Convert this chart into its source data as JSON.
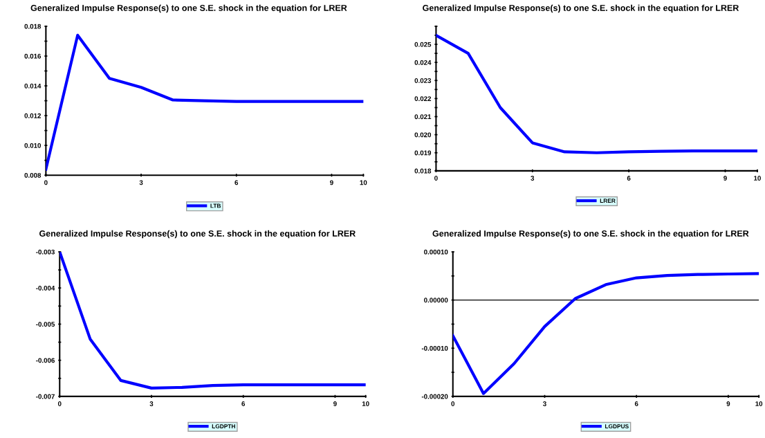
{
  "chart_data": [
    {
      "type": "line",
      "title": "Generalized Impulse Response(s) to one S.E. shock in the equation for LRER",
      "x": [
        0,
        1,
        2,
        3,
        4,
        5,
        6,
        7,
        8,
        9,
        10
      ],
      "xlim": [
        0,
        10
      ],
      "xticks": [
        0,
        3,
        6,
        9,
        10
      ],
      "ylim": [
        0.008,
        0.018
      ],
      "yticks": [
        {
          "value": 0.008,
          "label": "0.008"
        },
        {
          "value": 0.009,
          "label": null
        },
        {
          "value": 0.01,
          "label": "0.010"
        },
        {
          "value": 0.011,
          "label": null
        },
        {
          "value": 0.012,
          "label": "0.012"
        },
        {
          "value": 0.013,
          "label": null
        },
        {
          "value": 0.014,
          "label": "0.014"
        },
        {
          "value": 0.015,
          "label": null
        },
        {
          "value": 0.016,
          "label": "0.016"
        },
        {
          "value": 0.017,
          "label": null
        },
        {
          "value": 0.018,
          "label": "0.018"
        }
      ],
      "legend": "bottom",
      "grid": false,
      "series": [
        {
          "name": "LTB",
          "color": "#0000ff",
          "values": [
            0.0084,
            0.0174,
            0.0145,
            0.0139,
            0.01305,
            0.013,
            0.01295,
            0.01295,
            0.01295,
            0.01295,
            0.01295
          ]
        }
      ]
    },
    {
      "type": "line",
      "title": "Generalized Impulse Response(s) to one S.E. shock in the equation for LRER",
      "x": [
        0,
        1,
        2,
        3,
        4,
        5,
        6,
        7,
        8,
        9,
        10
      ],
      "xlim": [
        0,
        10
      ],
      "xticks": [
        0,
        3,
        6,
        9,
        10
      ],
      "ylim": [
        0.018,
        0.026
      ],
      "yticks": [
        {
          "value": 0.018,
          "label": "0.018"
        },
        {
          "value": 0.0185,
          "label": null
        },
        {
          "value": 0.019,
          "label": "0.019"
        },
        {
          "value": 0.0195,
          "label": null
        },
        {
          "value": 0.02,
          "label": "0.020"
        },
        {
          "value": 0.0205,
          "label": null
        },
        {
          "value": 0.021,
          "label": "0.021"
        },
        {
          "value": 0.0215,
          "label": null
        },
        {
          "value": 0.022,
          "label": "0.022"
        },
        {
          "value": 0.0225,
          "label": null
        },
        {
          "value": 0.023,
          "label": "0.023"
        },
        {
          "value": 0.0235,
          "label": null
        },
        {
          "value": 0.024,
          "label": "0.024"
        },
        {
          "value": 0.0245,
          "label": null
        },
        {
          "value": 0.025,
          "label": "0.025"
        },
        {
          "value": 0.0255,
          "label": null
        },
        {
          "value": 0.026,
          "label": null
        }
      ],
      "legend": "bottom",
      "grid": false,
      "series": [
        {
          "name": "LRER",
          "color": "#0000ff",
          "values": [
            0.0255,
            0.0245,
            0.0215,
            0.01955,
            0.01905,
            0.019,
            0.01905,
            0.01908,
            0.0191,
            0.0191,
            0.0191
          ]
        }
      ]
    },
    {
      "type": "line",
      "title": "Generalized Impulse Response(s) to one S.E. shock in the equation for LRER",
      "x": [
        0,
        1,
        2,
        3,
        4,
        5,
        6,
        7,
        8,
        9,
        10
      ],
      "xlim": [
        0,
        10
      ],
      "xticks": [
        0,
        3,
        6,
        9,
        10
      ],
      "ylim": [
        -0.007,
        -0.003
      ],
      "yticks": [
        {
          "value": -0.007,
          "label": "-0.007"
        },
        {
          "value": -0.0065,
          "label": null
        },
        {
          "value": -0.006,
          "label": "-0.006"
        },
        {
          "value": -0.0055,
          "label": null
        },
        {
          "value": -0.005,
          "label": "-0.005"
        },
        {
          "value": -0.0045,
          "label": null
        },
        {
          "value": -0.004,
          "label": "-0.004"
        },
        {
          "value": -0.0035,
          "label": null
        },
        {
          "value": -0.003,
          "label": "-0.003"
        }
      ],
      "legend": "bottom",
      "grid": false,
      "series": [
        {
          "name": "LGDPTH",
          "color": "#0000ff",
          "values": [
            -0.003,
            -0.00542,
            -0.00656,
            -0.00677,
            -0.00675,
            -0.0067,
            -0.00668,
            -0.00668,
            -0.00668,
            -0.00668,
            -0.00668
          ]
        }
      ]
    },
    {
      "type": "line",
      "title": "Generalized Impulse Response(s) to one S.E. shock in the equation for LRER",
      "x": [
        0,
        1,
        2,
        3,
        4,
        5,
        6,
        7,
        8,
        9,
        10
      ],
      "xlim": [
        0,
        10
      ],
      "xticks": [
        0,
        3,
        6,
        9,
        10
      ],
      "ylim": [
        -0.0002,
        0.0001
      ],
      "yticks": [
        {
          "value": -0.0002,
          "label": "-0.00020"
        },
        {
          "value": -0.00015,
          "label": null
        },
        {
          "value": -0.0001,
          "label": "-0.00010"
        },
        {
          "value": -5e-05,
          "label": null
        },
        {
          "value": 0,
          "label": "0.00000"
        },
        {
          "value": 5e-05,
          "label": null
        },
        {
          "value": 0.0001,
          "label": "0.00010"
        }
      ],
      "legend": "bottom",
      "grid": false,
      "ref_lines": [
        {
          "axis": "y",
          "value": 0,
          "color": "#000000"
        }
      ],
      "series": [
        {
          "name": "LGDPUS",
          "color": "#0000ff",
          "values": [
            -7.4e-05,
            -0.000194,
            -0.000132,
            -5.5e-05,
            3e-06,
            3.2e-05,
            4.6e-05,
            5.1e-05,
            5.3e-05,
            5.4e-05,
            5.5e-05
          ]
        }
      ]
    }
  ]
}
